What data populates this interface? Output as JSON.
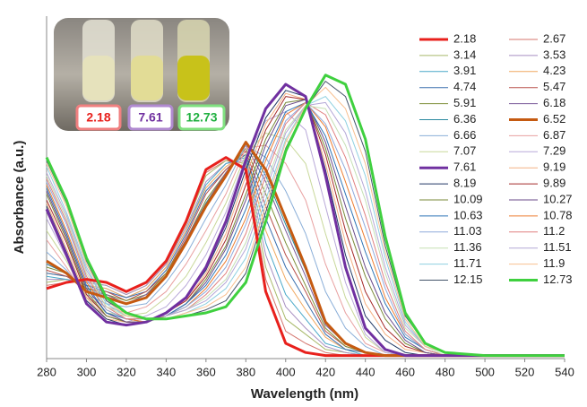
{
  "chart_data": {
    "type": "line",
    "x_label": "Wavelength (nm)",
    "y_label": "Absorbance (a.u.)",
    "x": [
      280,
      290,
      300,
      310,
      320,
      330,
      340,
      350,
      360,
      370,
      380,
      390,
      400,
      410,
      420,
      430,
      440,
      450,
      460,
      470,
      480,
      500,
      540
    ],
    "xlim": [
      280,
      540
    ],
    "xticks": [
      280,
      300,
      320,
      340,
      360,
      380,
      400,
      420,
      440,
      460,
      480,
      500,
      520,
      540
    ],
    "ylim": [
      0,
      1
    ],
    "grid": false,
    "legend": "upper right",
    "inset_labels": [
      "2.18",
      "7.61",
      "12.73"
    ],
    "series": [
      {
        "name": "2.18",
        "color": "#e8201c",
        "width": 3,
        "values": [
          0.23,
          0.25,
          0.26,
          0.25,
          0.22,
          0.25,
          0.32,
          0.45,
          0.62,
          0.66,
          0.62,
          0.22,
          0.05,
          0.02,
          0.01,
          0.01,
          0.01,
          0.01,
          0.01,
          0.01,
          0.01,
          0.01,
          0.01
        ]
      },
      {
        "name": "2.67",
        "color": "#d4756e",
        "values": [
          0.24,
          0.25,
          0.26,
          0.25,
          0.22,
          0.25,
          0.32,
          0.44,
          0.61,
          0.65,
          0.63,
          0.26,
          0.09,
          0.05,
          0.02,
          0.01,
          0.01,
          0.01,
          0.01,
          0.01,
          0.01,
          0.01,
          0.01
        ]
      },
      {
        "name": "3.14",
        "color": "#a8b96a",
        "values": [
          0.25,
          0.26,
          0.25,
          0.24,
          0.21,
          0.24,
          0.31,
          0.44,
          0.6,
          0.65,
          0.64,
          0.3,
          0.13,
          0.08,
          0.03,
          0.02,
          0.01,
          0.01,
          0.01,
          0.01,
          0.01,
          0.01,
          0.01
        ]
      },
      {
        "name": "3.53",
        "color": "#a78fc0",
        "values": [
          0.26,
          0.26,
          0.25,
          0.24,
          0.21,
          0.24,
          0.31,
          0.43,
          0.58,
          0.64,
          0.65,
          0.34,
          0.17,
          0.1,
          0.04,
          0.02,
          0.01,
          0.01,
          0.01,
          0.01,
          0.01,
          0.01,
          0.01
        ]
      },
      {
        "name": "3.91",
        "color": "#4aa8c8",
        "values": [
          0.27,
          0.26,
          0.24,
          0.23,
          0.2,
          0.23,
          0.3,
          0.42,
          0.57,
          0.64,
          0.66,
          0.38,
          0.21,
          0.13,
          0.05,
          0.03,
          0.01,
          0.01,
          0.01,
          0.01,
          0.01,
          0.01,
          0.01
        ]
      },
      {
        "name": "4.23",
        "color": "#f0a860",
        "values": [
          0.28,
          0.27,
          0.24,
          0.23,
          0.2,
          0.23,
          0.3,
          0.42,
          0.56,
          0.63,
          0.67,
          0.42,
          0.26,
          0.16,
          0.07,
          0.03,
          0.02,
          0.01,
          0.01,
          0.01,
          0.01,
          0.01,
          0.01
        ]
      },
      {
        "name": "4.74",
        "color": "#3a6fae",
        "values": [
          0.28,
          0.27,
          0.24,
          0.22,
          0.2,
          0.22,
          0.29,
          0.41,
          0.55,
          0.62,
          0.67,
          0.46,
          0.3,
          0.19,
          0.08,
          0.03,
          0.02,
          0.01,
          0.01,
          0.01,
          0.01,
          0.01,
          0.01
        ]
      },
      {
        "name": "5.47",
        "color": "#b8504a",
        "values": [
          0.29,
          0.27,
          0.23,
          0.22,
          0.19,
          0.22,
          0.28,
          0.4,
          0.54,
          0.62,
          0.68,
          0.5,
          0.34,
          0.22,
          0.09,
          0.04,
          0.02,
          0.01,
          0.01,
          0.01,
          0.01,
          0.01,
          0.01
        ]
      },
      {
        "name": "5.91",
        "color": "#7f8f3a",
        "values": [
          0.3,
          0.28,
          0.23,
          0.21,
          0.19,
          0.21,
          0.28,
          0.39,
          0.52,
          0.61,
          0.69,
          0.54,
          0.38,
          0.24,
          0.1,
          0.04,
          0.02,
          0.01,
          0.01,
          0.01,
          0.01,
          0.01,
          0.01
        ]
      },
      {
        "name": "6.18",
        "color": "#7a5a9a",
        "values": [
          0.31,
          0.28,
          0.22,
          0.21,
          0.18,
          0.21,
          0.27,
          0.39,
          0.51,
          0.61,
          0.7,
          0.58,
          0.42,
          0.27,
          0.11,
          0.05,
          0.02,
          0.01,
          0.01,
          0.01,
          0.01,
          0.01,
          0.01
        ]
      },
      {
        "name": "6.36",
        "color": "#2c8aa0",
        "values": [
          0.31,
          0.28,
          0.22,
          0.2,
          0.18,
          0.2,
          0.27,
          0.38,
          0.51,
          0.6,
          0.71,
          0.6,
          0.44,
          0.29,
          0.12,
          0.05,
          0.02,
          0.01,
          0.01,
          0.01,
          0.01,
          0.01,
          0.01
        ]
      },
      {
        "name": "6.52",
        "color": "#c55a11",
        "width": 3,
        "values": [
          0.32,
          0.28,
          0.22,
          0.2,
          0.18,
          0.2,
          0.27,
          0.38,
          0.5,
          0.6,
          0.71,
          0.62,
          0.46,
          0.3,
          0.12,
          0.05,
          0.02,
          0.01,
          0.01,
          0.01,
          0.01,
          0.01,
          0.01
        ]
      },
      {
        "name": "6.66",
        "color": "#8aaed8",
        "values": [
          0.35,
          0.29,
          0.21,
          0.18,
          0.17,
          0.18,
          0.25,
          0.34,
          0.46,
          0.57,
          0.7,
          0.66,
          0.55,
          0.41,
          0.22,
          0.1,
          0.04,
          0.01,
          0.01,
          0.01,
          0.01,
          0.01,
          0.01
        ]
      },
      {
        "name": "6.87",
        "color": "#e8a0a0",
        "values": [
          0.39,
          0.3,
          0.2,
          0.17,
          0.15,
          0.17,
          0.22,
          0.31,
          0.42,
          0.54,
          0.69,
          0.7,
          0.64,
          0.52,
          0.31,
          0.15,
          0.05,
          0.02,
          0.01,
          0.01,
          0.01,
          0.01,
          0.01
        ]
      },
      {
        "name": "7.07",
        "color": "#c8d89a",
        "values": [
          0.42,
          0.32,
          0.2,
          0.15,
          0.14,
          0.15,
          0.2,
          0.27,
          0.38,
          0.51,
          0.67,
          0.74,
          0.72,
          0.64,
          0.41,
          0.2,
          0.07,
          0.02,
          0.01,
          0.01,
          0.01,
          0.01,
          0.01
        ]
      },
      {
        "name": "7.29",
        "color": "#b8a8d8",
        "values": [
          0.46,
          0.33,
          0.19,
          0.14,
          0.12,
          0.14,
          0.17,
          0.24,
          0.34,
          0.48,
          0.66,
          0.78,
          0.81,
          0.75,
          0.5,
          0.25,
          0.08,
          0.02,
          0.01,
          0.01,
          0.01,
          0.01,
          0.01
        ]
      },
      {
        "name": "7.61",
        "color": "#7030a0",
        "width": 3,
        "values": [
          0.49,
          0.34,
          0.18,
          0.12,
          0.11,
          0.12,
          0.15,
          0.2,
          0.3,
          0.45,
          0.65,
          0.82,
          0.9,
          0.86,
          0.6,
          0.3,
          0.1,
          0.03,
          0.01,
          0.01,
          0.01,
          0.01,
          0.01
        ]
      },
      {
        "name": "9.19",
        "color": "#f4b183",
        "values": [
          0.51,
          0.36,
          0.2,
          0.13,
          0.12,
          0.12,
          0.15,
          0.19,
          0.28,
          0.41,
          0.6,
          0.77,
          0.87,
          0.85,
          0.64,
          0.38,
          0.18,
          0.08,
          0.03,
          0.02,
          0.01,
          0.01,
          0.01
        ]
      },
      {
        "name": "8.19",
        "color": "#203864",
        "values": [
          0.5,
          0.35,
          0.19,
          0.13,
          0.11,
          0.12,
          0.15,
          0.2,
          0.29,
          0.43,
          0.62,
          0.79,
          0.88,
          0.86,
          0.62,
          0.34,
          0.14,
          0.06,
          0.02,
          0.01,
          0.01,
          0.01,
          0.01
        ]
      },
      {
        "name": "9.89",
        "color": "#a52a2a",
        "values": [
          0.52,
          0.38,
          0.21,
          0.14,
          0.12,
          0.12,
          0.15,
          0.19,
          0.27,
          0.39,
          0.57,
          0.75,
          0.86,
          0.85,
          0.67,
          0.42,
          0.22,
          0.1,
          0.04,
          0.02,
          0.01,
          0.01,
          0.01
        ]
      },
      {
        "name": "10.09",
        "color": "#7a8a3a",
        "values": [
          0.54,
          0.39,
          0.22,
          0.14,
          0.12,
          0.12,
          0.14,
          0.18,
          0.26,
          0.37,
          0.54,
          0.72,
          0.84,
          0.85,
          0.69,
          0.46,
          0.27,
          0.13,
          0.05,
          0.02,
          0.01,
          0.01,
          0.01
        ]
      },
      {
        "name": "10.27",
        "color": "#6a4a8a",
        "values": [
          0.55,
          0.4,
          0.23,
          0.15,
          0.12,
          0.12,
          0.14,
          0.18,
          0.25,
          0.36,
          0.52,
          0.7,
          0.83,
          0.85,
          0.71,
          0.5,
          0.3,
          0.15,
          0.06,
          0.02,
          0.01,
          0.01,
          0.01
        ]
      },
      {
        "name": "10.63",
        "color": "#2e75b6",
        "values": [
          0.56,
          0.41,
          0.24,
          0.15,
          0.13,
          0.12,
          0.14,
          0.18,
          0.24,
          0.34,
          0.49,
          0.67,
          0.81,
          0.84,
          0.73,
          0.54,
          0.35,
          0.18,
          0.07,
          0.03,
          0.01,
          0.01,
          0.01
        ]
      },
      {
        "name": "10.78",
        "color": "#ed7d31",
        "values": [
          0.57,
          0.42,
          0.25,
          0.16,
          0.13,
          0.12,
          0.14,
          0.17,
          0.23,
          0.32,
          0.46,
          0.65,
          0.8,
          0.84,
          0.76,
          0.58,
          0.39,
          0.2,
          0.08,
          0.03,
          0.01,
          0.01,
          0.01
        ]
      },
      {
        "name": "11.03",
        "color": "#8faadc",
        "values": [
          0.58,
          0.44,
          0.26,
          0.16,
          0.13,
          0.13,
          0.14,
          0.17,
          0.22,
          0.3,
          0.44,
          0.62,
          0.78,
          0.84,
          0.77,
          0.62,
          0.43,
          0.23,
          0.08,
          0.03,
          0.01,
          0.01,
          0.01
        ]
      },
      {
        "name": "11.2",
        "color": "#e08080",
        "values": [
          0.59,
          0.45,
          0.27,
          0.17,
          0.13,
          0.13,
          0.14,
          0.16,
          0.21,
          0.28,
          0.41,
          0.6,
          0.77,
          0.84,
          0.8,
          0.66,
          0.47,
          0.25,
          0.09,
          0.03,
          0.01,
          0.01,
          0.01
        ]
      },
      {
        "name": "11.36",
        "color": "#c5e0b4",
        "values": [
          0.6,
          0.46,
          0.28,
          0.17,
          0.14,
          0.13,
          0.14,
          0.16,
          0.2,
          0.26,
          0.38,
          0.57,
          0.75,
          0.83,
          0.82,
          0.7,
          0.52,
          0.28,
          0.1,
          0.04,
          0.01,
          0.01,
          0.01
        ]
      },
      {
        "name": "11.51",
        "color": "#b4a7d6",
        "values": [
          0.61,
          0.47,
          0.29,
          0.18,
          0.14,
          0.13,
          0.14,
          0.16,
          0.19,
          0.25,
          0.36,
          0.55,
          0.74,
          0.83,
          0.84,
          0.74,
          0.55,
          0.3,
          0.11,
          0.04,
          0.02,
          0.01,
          0.01
        ]
      },
      {
        "name": "11.71",
        "color": "#8ed0e0",
        "values": [
          0.63,
          0.48,
          0.3,
          0.18,
          0.14,
          0.13,
          0.13,
          0.15,
          0.18,
          0.23,
          0.33,
          0.52,
          0.72,
          0.83,
          0.86,
          0.78,
          0.6,
          0.33,
          0.12,
          0.04,
          0.02,
          0.01,
          0.01
        ]
      },
      {
        "name": "11.9",
        "color": "#f8c090",
        "values": [
          0.64,
          0.5,
          0.31,
          0.19,
          0.14,
          0.13,
          0.13,
          0.15,
          0.17,
          0.21,
          0.3,
          0.5,
          0.71,
          0.83,
          0.89,
          0.82,
          0.64,
          0.35,
          0.13,
          0.04,
          0.02,
          0.01,
          0.01
        ]
      },
      {
        "name": "12.15",
        "color": "#44546a",
        "values": [
          0.65,
          0.51,
          0.32,
          0.19,
          0.15,
          0.13,
          0.13,
          0.14,
          0.16,
          0.19,
          0.28,
          0.48,
          0.69,
          0.82,
          0.91,
          0.86,
          0.68,
          0.37,
          0.14,
          0.05,
          0.02,
          0.01,
          0.01
        ]
      },
      {
        "name": "12.73",
        "color": "#3fd03f",
        "width": 3,
        "values": [
          0.66,
          0.52,
          0.33,
          0.2,
          0.15,
          0.13,
          0.13,
          0.14,
          0.15,
          0.17,
          0.25,
          0.45,
          0.68,
          0.82,
          0.93,
          0.9,
          0.72,
          0.4,
          0.15,
          0.05,
          0.02,
          0.01,
          0.01
        ]
      }
    ]
  }
}
